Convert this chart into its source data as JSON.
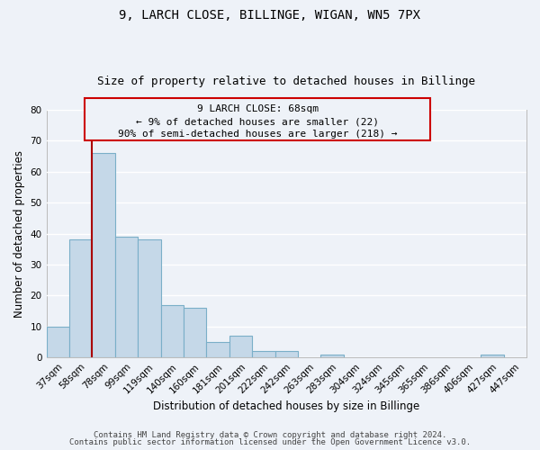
{
  "title": "9, LARCH CLOSE, BILLINGE, WIGAN, WN5 7PX",
  "subtitle": "Size of property relative to detached houses in Billinge",
  "xlabel": "Distribution of detached houses by size in Billinge",
  "ylabel": "Number of detached properties",
  "categories": [
    "37sqm",
    "58sqm",
    "78sqm",
    "99sqm",
    "119sqm",
    "140sqm",
    "160sqm",
    "181sqm",
    "201sqm",
    "222sqm",
    "242sqm",
    "263sqm",
    "283sqm",
    "304sqm",
    "324sqm",
    "345sqm",
    "365sqm",
    "386sqm",
    "406sqm",
    "427sqm",
    "447sqm"
  ],
  "values": [
    10,
    38,
    66,
    39,
    38,
    17,
    16,
    5,
    7,
    2,
    2,
    0,
    1,
    0,
    0,
    0,
    0,
    0,
    0,
    1,
    0
  ],
  "bar_color": "#c5d8e8",
  "bar_edge_color": "#7aafc8",
  "marker_color": "#aa0000",
  "ylim": [
    0,
    80
  ],
  "yticks": [
    0,
    10,
    20,
    30,
    40,
    50,
    60,
    70,
    80
  ],
  "annotation_line1": "9 LARCH CLOSE: 68sqm",
  "annotation_line2": "← 9% of detached houses are smaller (22)",
  "annotation_line3": "90% of semi-detached houses are larger (218) →",
  "footer_line1": "Contains HM Land Registry data © Crown copyright and database right 2024.",
  "footer_line2": "Contains public sector information licensed under the Open Government Licence v3.0.",
  "bg_color": "#eef2f8",
  "grid_color": "#ffffff",
  "title_fontsize": 10,
  "subtitle_fontsize": 9,
  "axis_label_fontsize": 8.5,
  "tick_fontsize": 7.5,
  "footer_fontsize": 6.5,
  "annotation_fontsize": 8
}
